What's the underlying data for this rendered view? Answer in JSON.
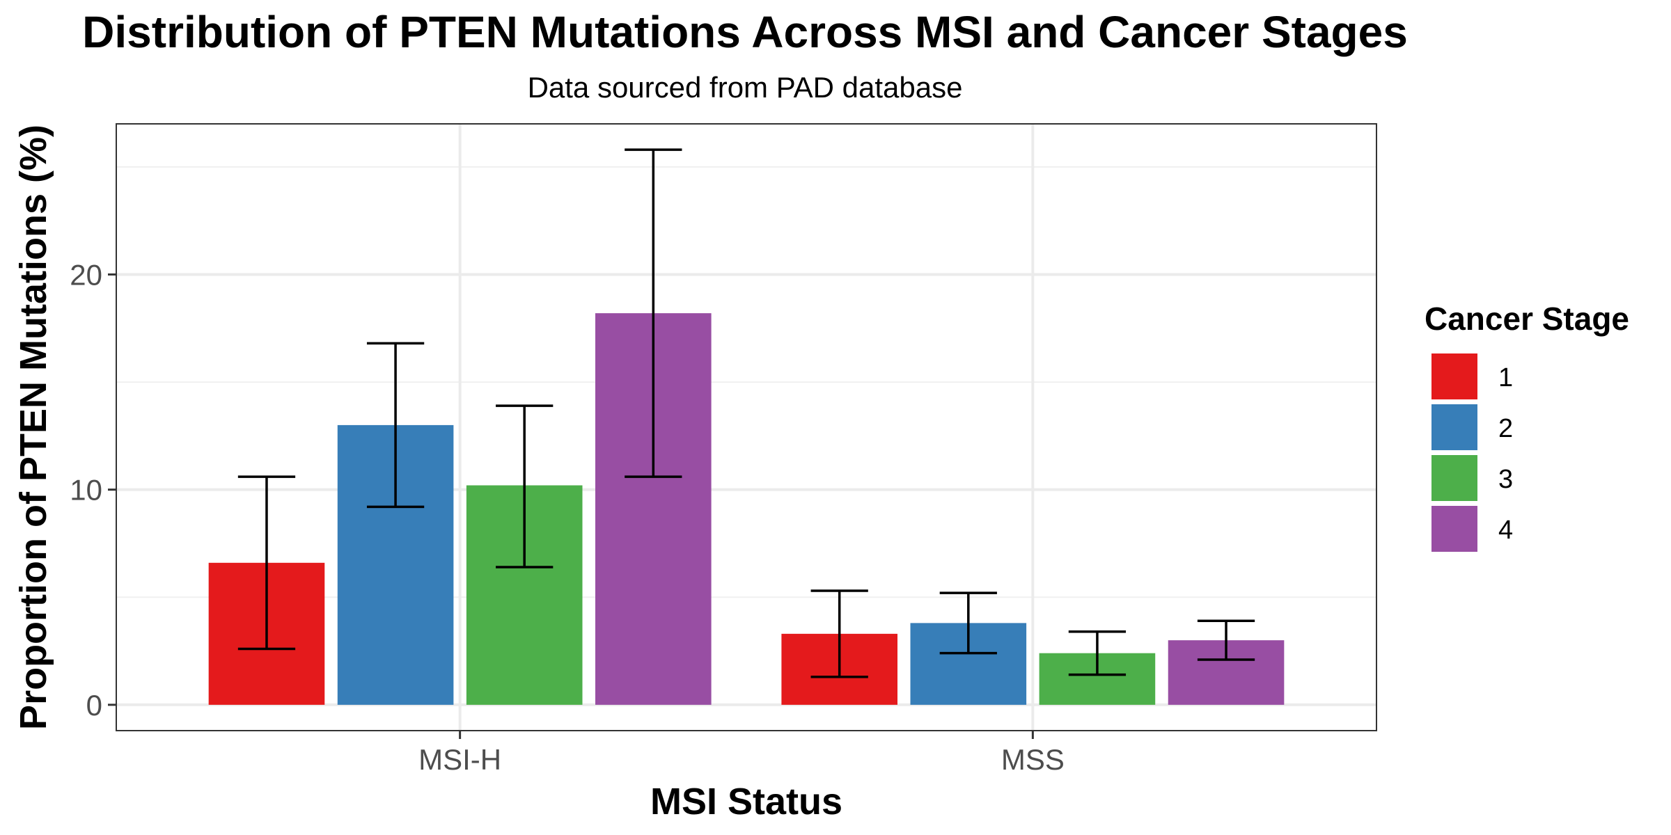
{
  "chart_data": {
    "type": "bar",
    "title": "Distribution of PTEN Mutations Across MSI and Cancer Stages",
    "subtitle": "Data sourced from PAD database",
    "xlabel": "MSI Status",
    "ylabel": "Proportion of PTEN Mutations (%)",
    "categories": [
      "MSI-H",
      "MSS"
    ],
    "ylim": [
      -1.2,
      27.0
    ],
    "yticks": [
      0,
      10,
      20
    ],
    "grid": true,
    "legend": {
      "title": "Cancer Stage",
      "position": "right"
    },
    "series": [
      {
        "name": "1",
        "color": "#E41A1C",
        "values": [
          6.6,
          3.3
        ],
        "error_low": [
          2.6,
          1.3
        ],
        "error_high": [
          10.6,
          5.3
        ]
      },
      {
        "name": "2",
        "color": "#377EB8",
        "values": [
          13.0,
          3.8
        ],
        "error_low": [
          9.2,
          2.4
        ],
        "error_high": [
          16.8,
          5.2
        ]
      },
      {
        "name": "3",
        "color": "#4DAF4A",
        "values": [
          10.2,
          2.4
        ],
        "error_low": [
          6.4,
          1.4
        ],
        "error_high": [
          13.9,
          3.4
        ]
      },
      {
        "name": "4",
        "color": "#984EA3",
        "values": [
          18.2,
          3.0
        ],
        "error_low": [
          10.6,
          2.1
        ],
        "error_high": [
          25.8,
          3.9
        ]
      }
    ]
  }
}
